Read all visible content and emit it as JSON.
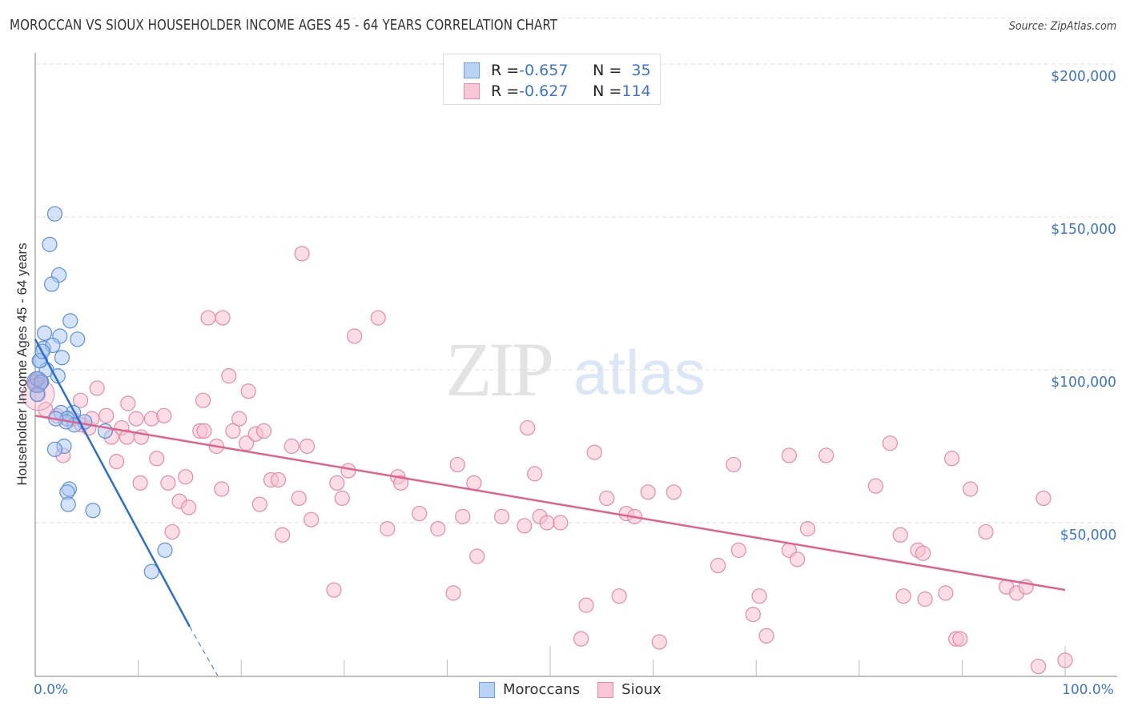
{
  "header": {
    "title": "MOROCCAN VS SIOUX HOUSEHOLDER INCOME AGES 45 - 64 YEARS CORRELATION CHART",
    "source": "Source: ZipAtlas.com"
  },
  "watermark": {
    "zip": "ZIP",
    "atlas": "atlas"
  },
  "legend_top": {
    "rows": [
      {
        "r_label": "R = ",
        "r_value": "-0.657",
        "n_label": "N = ",
        "n_value": "35",
        "color": "#b8d3f5",
        "border": "#6d9fe0"
      },
      {
        "r_label": "R = ",
        "r_value": "-0.627",
        "n_label": "N = ",
        "n_value": "114",
        "color": "#f9c6d6",
        "border": "#e88aa8"
      }
    ]
  },
  "legend_bottom": {
    "items": [
      {
        "label": "Moroccans",
        "color": "#b8d3f5",
        "border": "#6d9fe0"
      },
      {
        "label": "Sioux",
        "color": "#f9c6d6",
        "border": "#e88aa8"
      }
    ]
  },
  "axes": {
    "ylabel": "Householder Income Ages 45 - 64 years",
    "yticks": [
      "$200,000",
      "$150,000",
      "$100,000",
      "$50,000"
    ],
    "xtick_left": "0.0%",
    "xtick_right": "100.0%"
  },
  "colors": {
    "moroccan_fill": "#a9c8f0",
    "moroccan_stroke": "#5b8fd9",
    "moroccan_line": "#2a6fd1",
    "sioux_fill": "#f7c1d2",
    "sioux_stroke": "#e58aa9",
    "sioux_line": "#e2608c",
    "tick_label": "#3b74d1"
  },
  "chart_data": {
    "type": "scatter",
    "title": "MOROCCAN VS SIOUX HOUSEHOLDER INCOME AGES 45 - 64 YEARS CORRELATION CHART",
    "xlabel": "",
    "ylabel": "Householder Income Ages 45 - 64 years",
    "xlim": [
      0,
      100
    ],
    "ylim": [
      0,
      200000
    ],
    "x_unit": "%",
    "y_ticks": [
      50000,
      100000,
      150000,
      200000
    ],
    "grid": true,
    "legend_position": "top-center",
    "series": [
      {
        "name": "Moroccans",
        "R": -0.657,
        "N": 35,
        "trend": {
          "x": [
            0,
            15,
            17.7
          ],
          "y": [
            110000,
            16000,
            0
          ],
          "dashed_after_x": 15
        },
        "points": [
          [
            1.9,
            151000
          ],
          [
            1.4,
            141000
          ],
          [
            2.3,
            131000
          ],
          [
            1.6,
            128000
          ],
          [
            3.4,
            116000
          ],
          [
            0.9,
            112000
          ],
          [
            2.4,
            111000
          ],
          [
            4.1,
            110000
          ],
          [
            0.8,
            107000
          ],
          [
            1.7,
            108000
          ],
          [
            2.6,
            104000
          ],
          [
            0.5,
            103000
          ],
          [
            1.1,
            100000
          ],
          [
            2.2,
            98000
          ],
          [
            0.2,
            97000
          ],
          [
            0.6,
            96000
          ],
          [
            0.4,
            103000
          ],
          [
            0.7,
            106000
          ],
          [
            0.2,
            92000
          ],
          [
            3.7,
            86000
          ],
          [
            2.5,
            86000
          ],
          [
            3.1,
            84000
          ],
          [
            4.8,
            83000
          ],
          [
            3.8,
            82000
          ],
          [
            3.0,
            83000
          ],
          [
            2.0,
            84000
          ],
          [
            6.8,
            80000
          ],
          [
            2.8,
            75000
          ],
          [
            1.9,
            74000
          ],
          [
            3.3,
            61000
          ],
          [
            3.1,
            60000
          ],
          [
            3.2,
            56000
          ],
          [
            5.6,
            54000
          ],
          [
            12.6,
            41000
          ],
          [
            11.3,
            34000
          ]
        ]
      },
      {
        "name": "Sioux",
        "R": -0.627,
        "N": 114,
        "trend": {
          "x": [
            0,
            100
          ],
          "y": [
            85000,
            28000
          ]
        },
        "points": [
          [
            0.3,
            92000
          ],
          [
            1.0,
            87000
          ],
          [
            2.1,
            85000
          ],
          [
            3.6,
            84000
          ],
          [
            4.5,
            82000
          ],
          [
            5.2,
            81000
          ],
          [
            2.7,
            72000
          ],
          [
            4.4,
            90000
          ],
          [
            6.0,
            94000
          ],
          [
            5.5,
            84000
          ],
          [
            6.9,
            85000
          ],
          [
            7.4,
            78000
          ],
          [
            8.4,
            81000
          ],
          [
            8.9,
            78000
          ],
          [
            9.8,
            84000
          ],
          [
            10.3,
            78000
          ],
          [
            11.3,
            84000
          ],
          [
            12.5,
            85000
          ],
          [
            7.9,
            70000
          ],
          [
            10.2,
            63000
          ],
          [
            11.8,
            71000
          ],
          [
            12.9,
            63000
          ],
          [
            14.0,
            57000
          ],
          [
            14.6,
            65000
          ],
          [
            14.9,
            55000
          ],
          [
            13.3,
            47000
          ],
          [
            16.0,
            80000
          ],
          [
            16.4,
            80000
          ],
          [
            17.6,
            75000
          ],
          [
            18.1,
            61000
          ],
          [
            19.2,
            80000
          ],
          [
            19.8,
            84000
          ],
          [
            20.5,
            76000
          ],
          [
            21.4,
            79000
          ],
          [
            22.2,
            80000
          ],
          [
            21.8,
            56000
          ],
          [
            22.9,
            64000
          ],
          [
            23.6,
            64000
          ],
          [
            24.0,
            46000
          ],
          [
            24.9,
            75000
          ],
          [
            25.6,
            58000
          ],
          [
            26.4,
            75000
          ],
          [
            26.8,
            51000
          ],
          [
            16.3,
            90000
          ],
          [
            18.8,
            98000
          ],
          [
            20.7,
            93000
          ],
          [
            16.8,
            117000
          ],
          [
            18.2,
            117000
          ],
          [
            25.9,
            138000
          ],
          [
            31.0,
            111000
          ],
          [
            33.3,
            117000
          ],
          [
            29.0,
            28000
          ],
          [
            29.3,
            63000
          ],
          [
            29.8,
            58000
          ],
          [
            30.4,
            67000
          ],
          [
            34.2,
            48000
          ],
          [
            35.2,
            65000
          ],
          [
            35.5,
            63000
          ],
          [
            37.3,
            53000
          ],
          [
            39.1,
            48000
          ],
          [
            40.6,
            27000
          ],
          [
            41.0,
            69000
          ],
          [
            41.5,
            52000
          ],
          [
            42.9,
            39000
          ],
          [
            42.6,
            63000
          ],
          [
            45.3,
            52000
          ],
          [
            47.8,
            81000
          ],
          [
            47.5,
            49000
          ],
          [
            48.5,
            66000
          ],
          [
            49.0,
            52000
          ],
          [
            49.7,
            50000
          ],
          [
            51.0,
            50000
          ],
          [
            53.5,
            23000
          ],
          [
            54.3,
            73000
          ],
          [
            55.5,
            58000
          ],
          [
            56.7,
            26000
          ],
          [
            57.4,
            53000
          ],
          [
            58.2,
            52000
          ],
          [
            59.5,
            60000
          ],
          [
            53.0,
            12000
          ],
          [
            60.6,
            11000
          ],
          [
            62.0,
            60000
          ],
          [
            66.3,
            36000
          ],
          [
            67.8,
            69000
          ],
          [
            68.3,
            41000
          ],
          [
            70.3,
            26000
          ],
          [
            69.7,
            20000
          ],
          [
            71.0,
            13000
          ],
          [
            73.2,
            72000
          ],
          [
            73.2,
            41000
          ],
          [
            74.0,
            38000
          ],
          [
            75.0,
            48000
          ],
          [
            76.8,
            72000
          ],
          [
            81.6,
            62000
          ],
          [
            83.0,
            76000
          ],
          [
            84.0,
            46000
          ],
          [
            84.3,
            26000
          ],
          [
            85.7,
            41000
          ],
          [
            86.2,
            40000
          ],
          [
            86.4,
            25000
          ],
          [
            89.0,
            71000
          ],
          [
            88.4,
            27000
          ],
          [
            89.4,
            12000
          ],
          [
            89.8,
            12000
          ],
          [
            90.8,
            61000
          ],
          [
            92.3,
            47000
          ],
          [
            94.3,
            29000
          ],
          [
            95.3,
            27000
          ],
          [
            96.2,
            29000
          ],
          [
            97.9,
            58000
          ],
          [
            97.4,
            3000
          ],
          [
            100.0,
            5000
          ],
          [
            0.0,
            96000
          ],
          [
            9.0,
            89000
          ]
        ]
      }
    ]
  }
}
